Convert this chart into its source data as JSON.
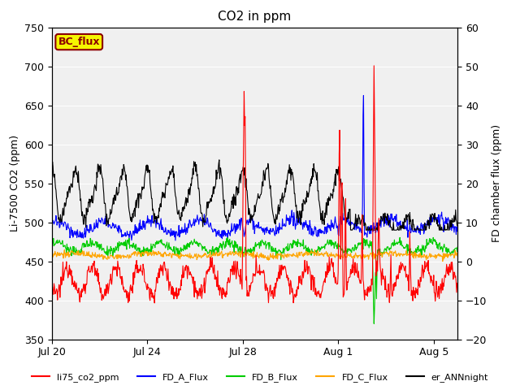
{
  "title": "CO2 in ppm",
  "ylabel_left": "Li-7500 CO2 (ppm)",
  "ylabel_right": "FD chamber flux (ppm)",
  "ylim_left": [
    350,
    750
  ],
  "ylim_right": [
    -20,
    60
  ],
  "xlim": [
    0,
    17
  ],
  "xtick_positions": [
    0,
    4,
    8,
    12,
    16
  ],
  "xtick_labels": [
    "Jul 20",
    "Jul 24",
    "Jul 28",
    "Aug 1",
    "Aug 5"
  ],
  "legend_box_label": "BC_flux",
  "bg_color": "#f0f0f0",
  "grid_color": "#ffffff",
  "colors": {
    "red": "#ff0000",
    "blue": "#0000ff",
    "green": "#00cc00",
    "orange": "#ffa500",
    "black": "#000000"
  },
  "bbox_facecolor": "#f5f500",
  "bbox_edgecolor": "#8b0000"
}
